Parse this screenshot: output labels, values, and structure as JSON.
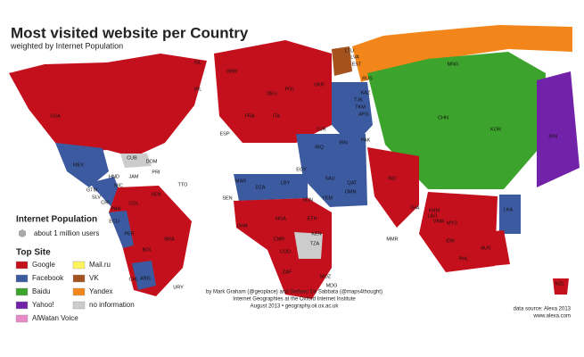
{
  "header": {
    "title": "Most visited website per Country",
    "subtitle": "weighted by Internet Population"
  },
  "legend": {
    "population_title": "Internet Population",
    "population_note": "about 1 million users",
    "site_title": "Top Site",
    "items": [
      {
        "label": "Google",
        "color": "#c4101c"
      },
      {
        "label": "Facebook",
        "color": "#3c5aa0"
      },
      {
        "label": "Baidu",
        "color": "#3ca42c"
      },
      {
        "label": "Yahoo!",
        "color": "#7222a8"
      },
      {
        "label": "AlWatan Voice",
        "color": "#e88ac8"
      },
      {
        "label": "Mail.ru",
        "color": "#fff45a"
      },
      {
        "label": "VK",
        "color": "#a4531e"
      },
      {
        "label": "Yandex",
        "color": "#f2861a"
      },
      {
        "label": "no information",
        "color": "#cccccc"
      }
    ]
  },
  "credits": [
    "by Mark Graham (@geoplace) and Stefano De Sabbata (@maps4thought)",
    "Internet Geographies at the Oxford Internet Institute",
    "August 2013 • geography.oii.ox.ac.uk"
  ],
  "source": [
    "data source: Alexa 2013",
    "www.alexa.com"
  ],
  "countries": [
    "USA",
    "MEX",
    "CUB",
    "DOM",
    "PRI",
    "JAM",
    "HND",
    "GTM",
    "SLV",
    "NIC",
    "CRI",
    "PAN",
    "TTO",
    "COL",
    "VEN",
    "ECU",
    "PER",
    "BOL",
    "BRA",
    "CHL",
    "ARG",
    "URY",
    "ISL",
    "IRL",
    "GBR",
    "FRA",
    "ESP",
    "DEU",
    "ITA",
    "POL",
    "UKR",
    "LTU",
    "LVA",
    "EST",
    "RUS",
    "KAZ",
    "TJK",
    "TKM",
    "AFG",
    "PAK",
    "IRN",
    "IRQ",
    "TUR",
    "SAU",
    "QAT",
    "OMN",
    "YEM",
    "EGY",
    "LBY",
    "DZA",
    "MAR",
    "SDN",
    "ETH",
    "SEN",
    "NGA",
    "GHA",
    "CMR",
    "COD",
    "KEN",
    "TZA",
    "ZAF",
    "MOZ",
    "MDG",
    "MNG",
    "CHN",
    "KOR",
    "JPN",
    "IND",
    "LKA",
    "MMR",
    "THA",
    "LAO",
    "KHM",
    "VNM",
    "MYS",
    "IDN",
    "PHL",
    "AUS",
    "NZL"
  ]
}
